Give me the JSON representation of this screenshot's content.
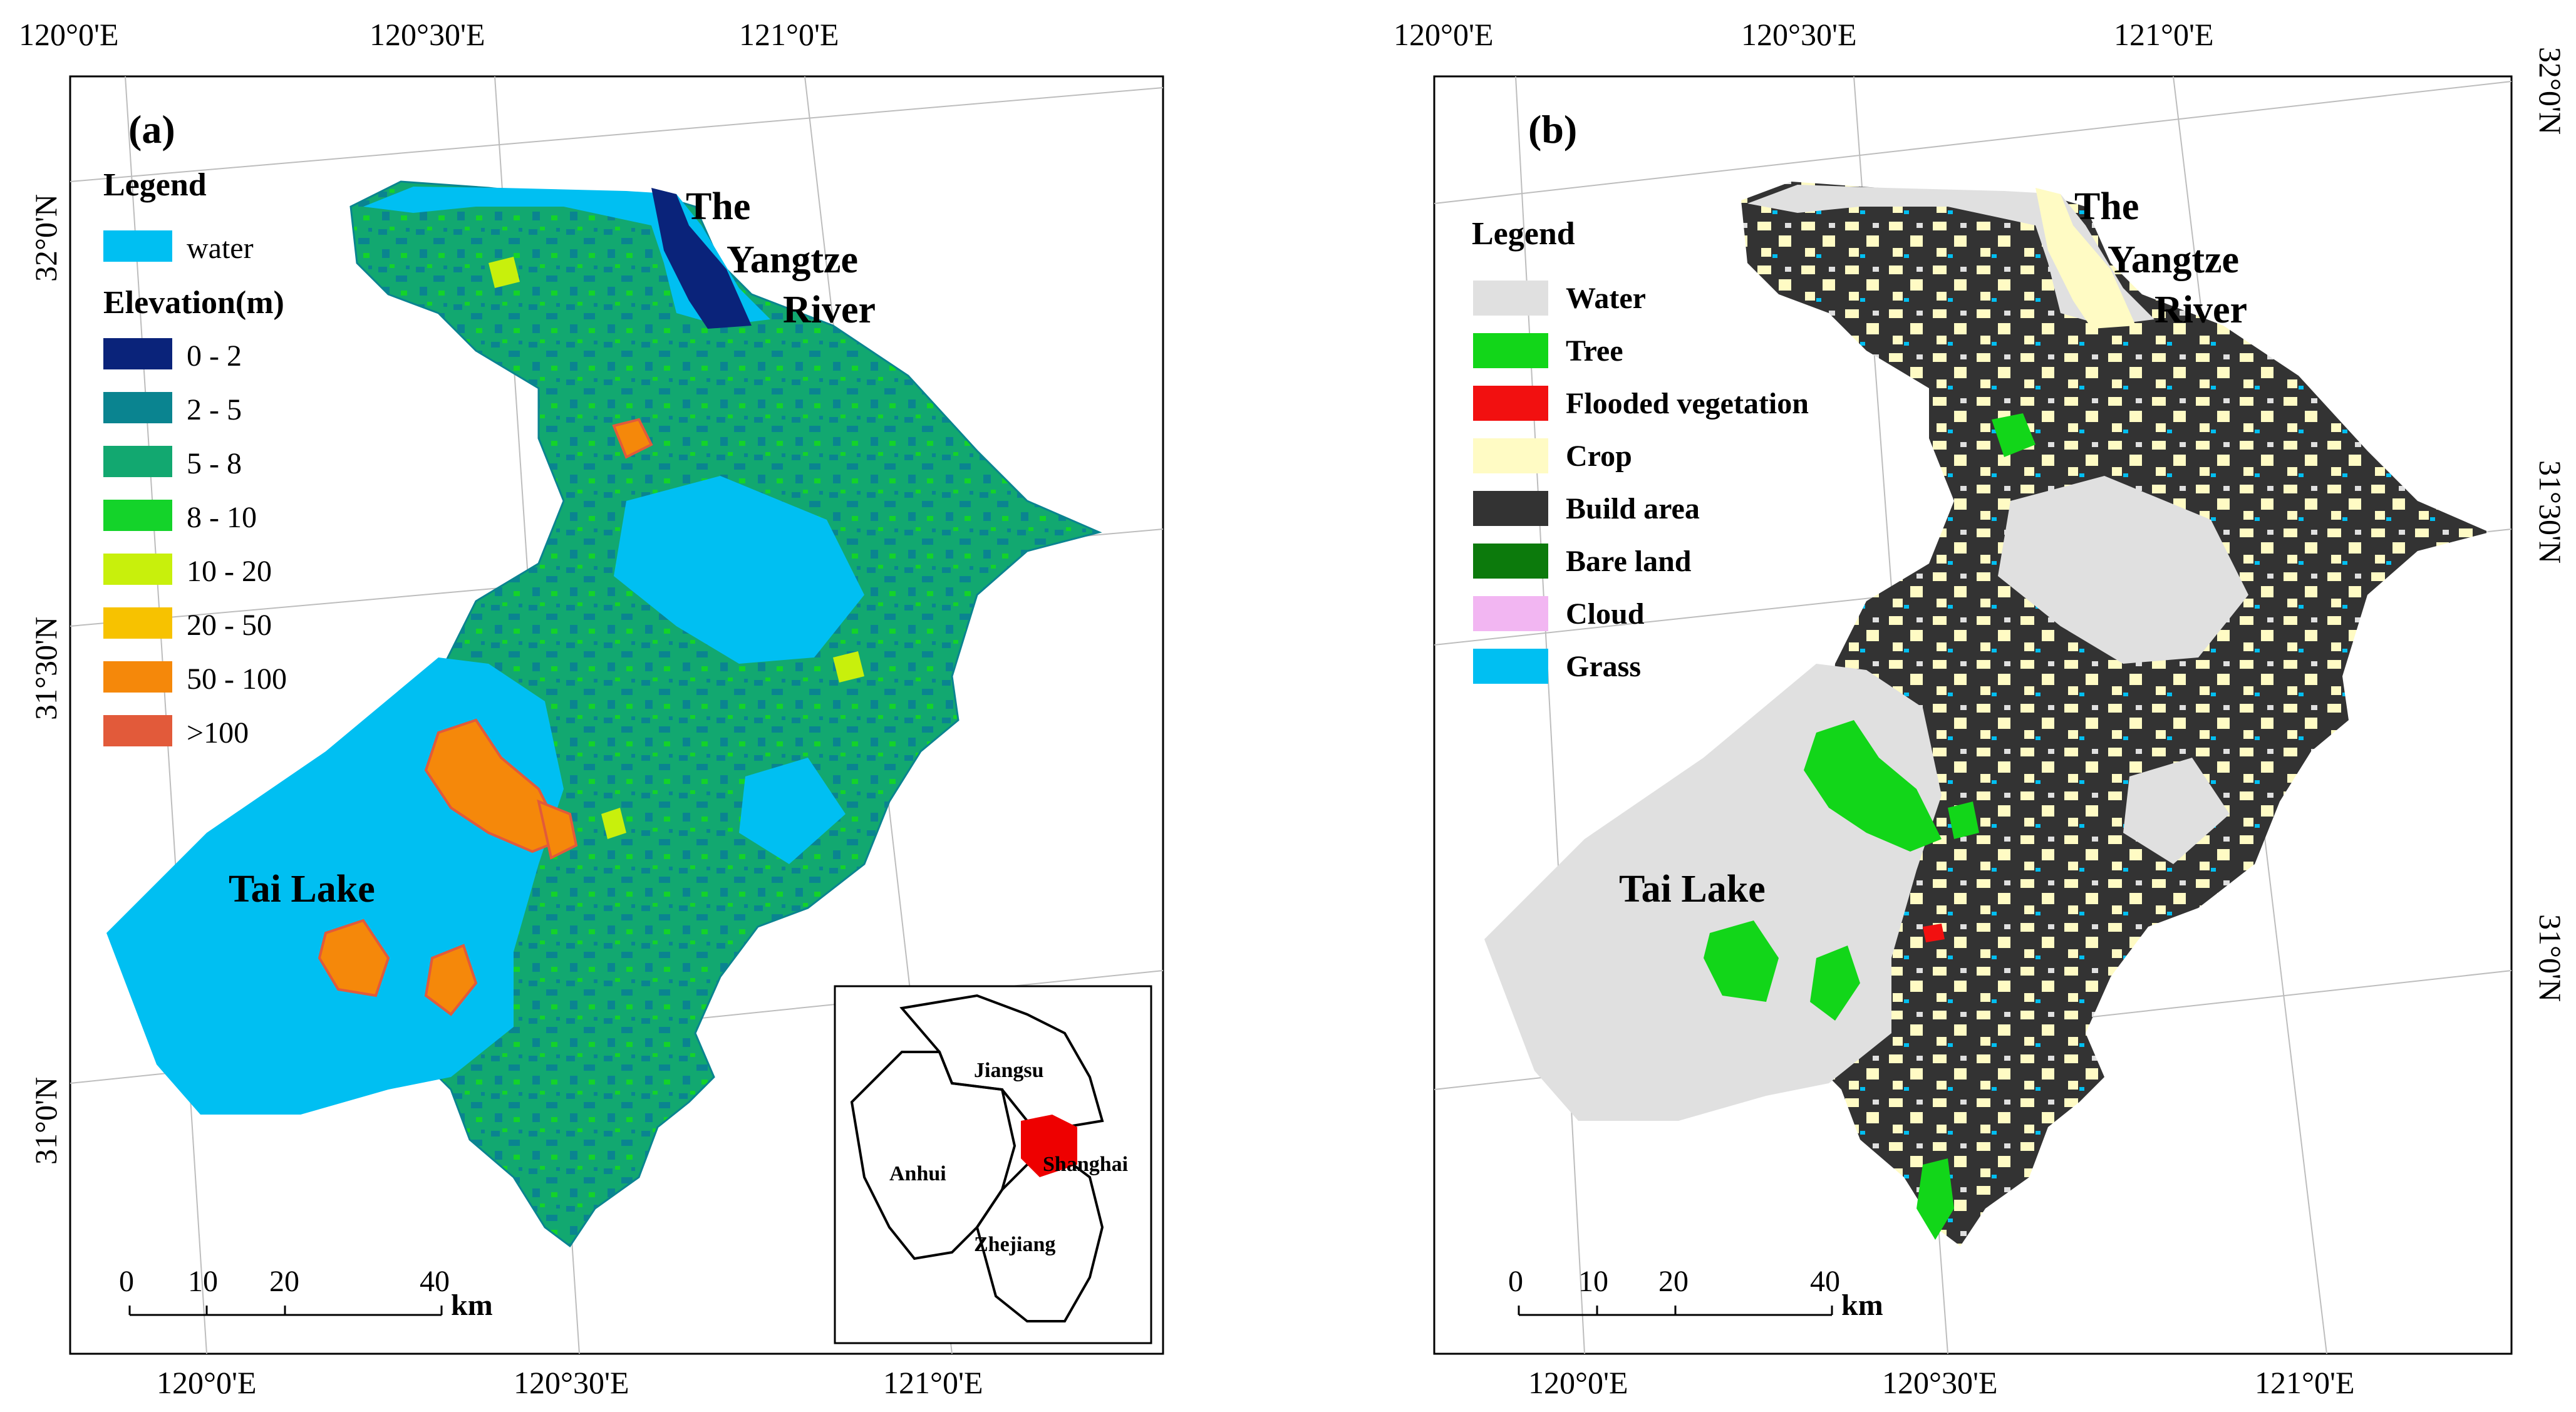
{
  "panel_a": {
    "label": "(a)",
    "top_labels": [
      "120°0'E",
      "120°30'E",
      "121°0'E"
    ],
    "bottom_labels": [
      "120°0'E",
      "120°30'E",
      "121°0'E"
    ],
    "left_labels": [
      "32°0'N",
      "31°30'N",
      "31°0'N"
    ],
    "legend": {
      "title": "Legend",
      "water_label": "water",
      "elev_title": "Elevation(m)",
      "classes": [
        {
          "label": "0 - 2",
          "color": "#0a237a"
        },
        {
          "label": "2 - 5",
          "color": "#0a8490"
        },
        {
          "label": "5 - 8",
          "color": "#12a870"
        },
        {
          "label": "8 - 10",
          "color": "#14d32a"
        },
        {
          "label": "10 - 20",
          "color": "#c8f00c"
        },
        {
          "label": "20 - 50",
          "color": "#f7c200"
        },
        {
          "label": "50 - 100",
          "color": "#f5880a"
        },
        {
          "label": ">100",
          "color": "#e25a3a"
        }
      ],
      "water_color": "#00bff2"
    },
    "features": {
      "river_line1": "The",
      "river_line2": "Yangtze",
      "river_line3": "River",
      "lake": "Tai Lake"
    },
    "scale": {
      "ticks": [
        "0",
        "10",
        "20",
        "40"
      ],
      "unit": "km"
    },
    "inset": {
      "labels": [
        "Jiangsu",
        "Anhui",
        "Shanghai",
        "Zhejiang"
      ],
      "highlight_color": "#ee0000"
    }
  },
  "panel_b": {
    "label": "(b)",
    "top_labels": [
      "120°0'E",
      "120°30'E",
      "121°0'E"
    ],
    "bottom_labels": [
      "120°0'E",
      "120°30'E",
      "121°0'E"
    ],
    "right_labels": [
      "32°0'N",
      "31°30'N",
      "31°0'N"
    ],
    "legend": {
      "title": "Legend",
      "classes": [
        {
          "label": "Water",
          "color": "#e0e0e0"
        },
        {
          "label": "Tree",
          "color": "#12d619"
        },
        {
          "label": "Flooded vegetation",
          "color": "#f21010"
        },
        {
          "label": "Crop",
          "color": "#fffbc4"
        },
        {
          "label": "Build area",
          "color": "#333333"
        },
        {
          "label": "Bare land",
          "color": "#0c7a0c"
        },
        {
          "label": "Cloud",
          "color": "#f2b6f2"
        },
        {
          "label": "Grass",
          "color": "#00bff2"
        }
      ]
    },
    "features": {
      "river_line1": "The",
      "river_line2": "Yangtze",
      "river_line3": "River",
      "lake": "Tai Lake"
    },
    "scale": {
      "ticks": [
        "0",
        "10",
        "20",
        "40"
      ],
      "unit": "km"
    }
  }
}
